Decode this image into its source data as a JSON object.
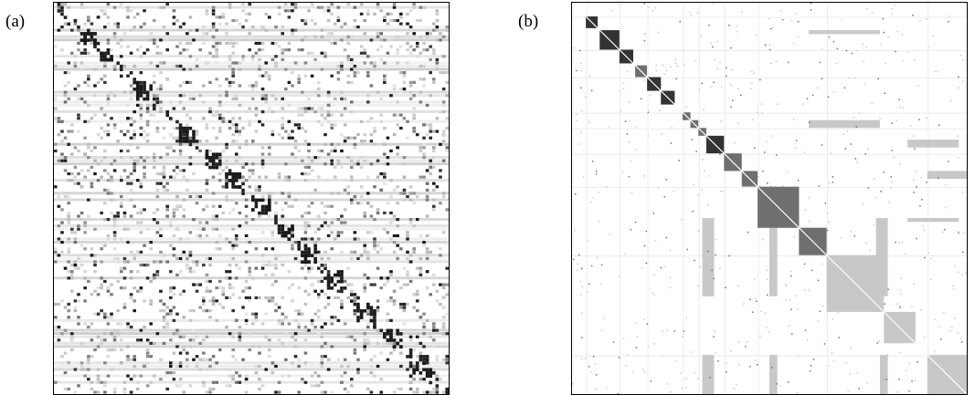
{
  "panels": [
    {
      "label": "(a)",
      "name": "unsorted-affinity-matrix"
    },
    {
      "label": "(b)",
      "name": "block-sorted-affinity-matrix"
    }
  ],
  "colors": {
    "dark": "#333333",
    "mid": "#6f6f6f",
    "light": "#c8c8c8",
    "faint": "#e6e6e6",
    "frame": "#000000"
  },
  "block_diagonal": [
    {
      "start": 0.035,
      "end": 0.065,
      "tone": "dark"
    },
    {
      "start": 0.07,
      "end": 0.12,
      "tone": "dark"
    },
    {
      "start": 0.12,
      "end": 0.155,
      "tone": "dark"
    },
    {
      "start": 0.16,
      "end": 0.19,
      "tone": "mid"
    },
    {
      "start": 0.19,
      "end": 0.225,
      "tone": "dark"
    },
    {
      "start": 0.225,
      "end": 0.26,
      "tone": "dark"
    },
    {
      "start": 0.28,
      "end": 0.3,
      "tone": "mid"
    },
    {
      "start": 0.3,
      "end": 0.32,
      "tone": "mid"
    },
    {
      "start": 0.32,
      "end": 0.34,
      "tone": "mid"
    },
    {
      "start": 0.34,
      "end": 0.385,
      "tone": "dark"
    },
    {
      "start": 0.385,
      "end": 0.43,
      "tone": "mid"
    },
    {
      "start": 0.43,
      "end": 0.47,
      "tone": "mid"
    },
    {
      "start": 0.47,
      "end": 0.575,
      "tone": "mid"
    },
    {
      "start": 0.575,
      "end": 0.645,
      "tone": "mid"
    },
    {
      "start": 0.645,
      "end": 0.79,
      "tone": "light"
    },
    {
      "start": 0.79,
      "end": 0.87,
      "tone": "light"
    },
    {
      "start": 0.9,
      "end": 1.0,
      "tone": "light"
    }
  ]
}
